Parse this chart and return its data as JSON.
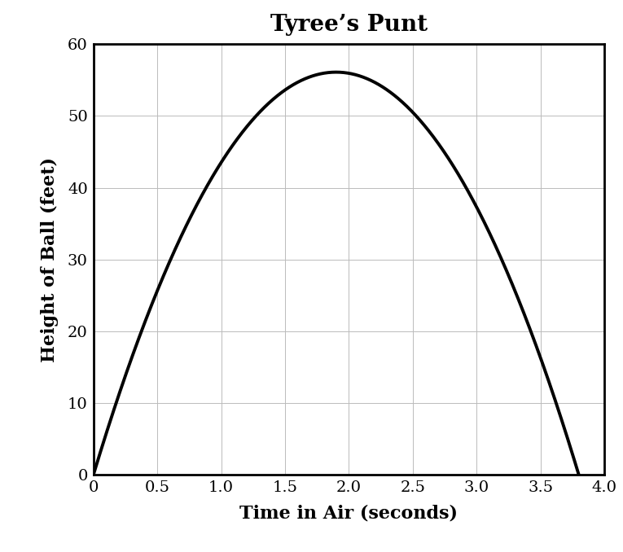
{
  "title": "Tyree’s Punt",
  "xlabel": "Time in Air (seconds)",
  "ylabel": "Height of Ball (feet)",
  "xlim": [
    0,
    4.0
  ],
  "ylim": [
    0,
    60
  ],
  "xticks": [
    0,
    0.5,
    1.0,
    1.5,
    2.0,
    2.5,
    3.0,
    3.5,
    4.0
  ],
  "yticks": [
    0,
    10,
    20,
    30,
    40,
    50,
    60
  ],
  "xtick_labels": [
    "0",
    "0.5",
    "1.0",
    "1.5",
    "2.0",
    "2.5",
    "3.0",
    "3.5",
    "4.0"
  ],
  "ytick_labels": [
    "0",
    "10",
    "20",
    "30",
    "40",
    "50",
    "60"
  ],
  "parabola_x_root2": 3.8,
  "parabola_vertex_x": 1.9,
  "parabola_vertex_y": 56.1,
  "curve_color": "#000000",
  "curve_linewidth": 2.8,
  "grid_color": "#bbbbbb",
  "bg_color": "#ffffff",
  "title_fontsize": 20,
  "axis_label_fontsize": 16,
  "tick_fontsize": 14,
  "spine_linewidth": 2.0
}
